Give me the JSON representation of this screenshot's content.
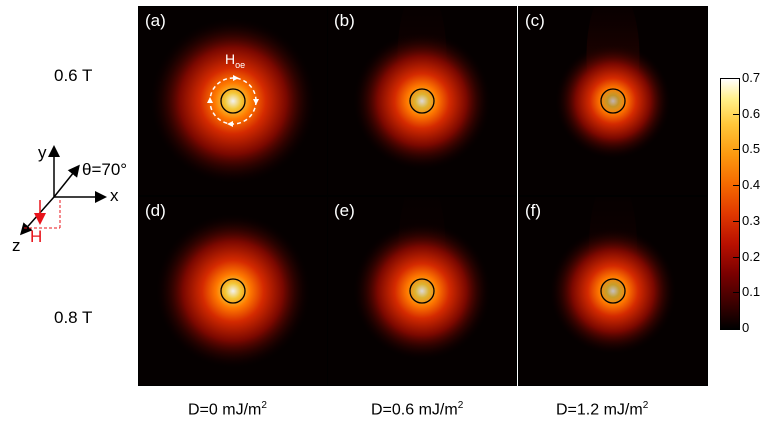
{
  "rows": [
    {
      "label": "0.6 T"
    },
    {
      "label": "0.8 T"
    }
  ],
  "columns": [
    {
      "label_main": "D=0 mJ/m",
      "label_sup": "2"
    },
    {
      "label_main": "D=0.6 mJ/m",
      "label_sup": "2"
    },
    {
      "label_main": "D=1.2 mJ/m",
      "label_sup": "2"
    }
  ],
  "panels": [
    {
      "label": "(a)",
      "glow_intensity": 0.95,
      "glow_spread": 0.95,
      "tail": 0.0
    },
    {
      "label": "(b)",
      "glow_intensity": 0.85,
      "glow_spread": 0.7,
      "tail": 0.25
    },
    {
      "label": "(c)",
      "glow_intensity": 0.7,
      "glow_spread": 0.5,
      "tail": 0.45
    },
    {
      "label": "(d)",
      "glow_intensity": 0.95,
      "glow_spread": 0.85,
      "tail": 0.0
    },
    {
      "label": "(e)",
      "glow_intensity": 0.85,
      "glow_spread": 0.7,
      "tail": 0.15
    },
    {
      "label": "(f)",
      "glow_intensity": 0.75,
      "glow_spread": 0.6,
      "tail": 0.2
    }
  ],
  "hoe_label_main": "H",
  "hoe_label_sub": "oe",
  "colorbar": {
    "ticks": [
      "0.7",
      "0.6",
      "0.5",
      "0.4",
      "0.3",
      "0.2",
      "0.1",
      "0"
    ],
    "min": 0,
    "max": 0.7
  },
  "axes_diagram": {
    "y_label": "y",
    "x_label": "x",
    "z_label": "z",
    "theta_label": "θ=70°",
    "h_label": "H",
    "h_color": "#e8141b"
  }
}
